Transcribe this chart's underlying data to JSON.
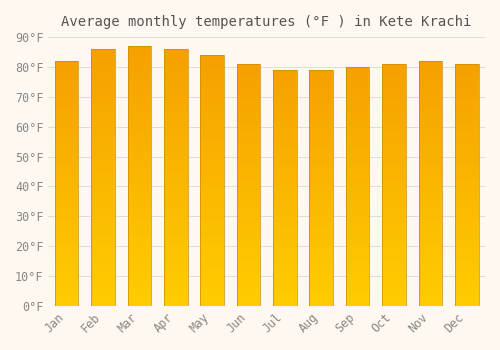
{
  "months": [
    "Jan",
    "Feb",
    "Mar",
    "Apr",
    "May",
    "Jun",
    "Jul",
    "Aug",
    "Sep",
    "Oct",
    "Nov",
    "Dec"
  ],
  "values": [
    82,
    86,
    87,
    86,
    84,
    81,
    79,
    79,
    80,
    81,
    82,
    81
  ],
  "title": "Average monthly temperatures (°F ) in Kete Krachi",
  "ylim": [
    0,
    90
  ],
  "yticks": [
    0,
    10,
    20,
    30,
    40,
    50,
    60,
    70,
    80,
    90
  ],
  "ylabel_format": "°F",
  "bar_color_bottom": "#FFCC00",
  "bar_color_top": "#F5A000",
  "bar_edge_color": "#CC8800",
  "background_color": "#FFF8F0",
  "grid_color": "#DDDDDD",
  "title_fontsize": 10,
  "tick_fontsize": 8.5,
  "font_family": "monospace"
}
